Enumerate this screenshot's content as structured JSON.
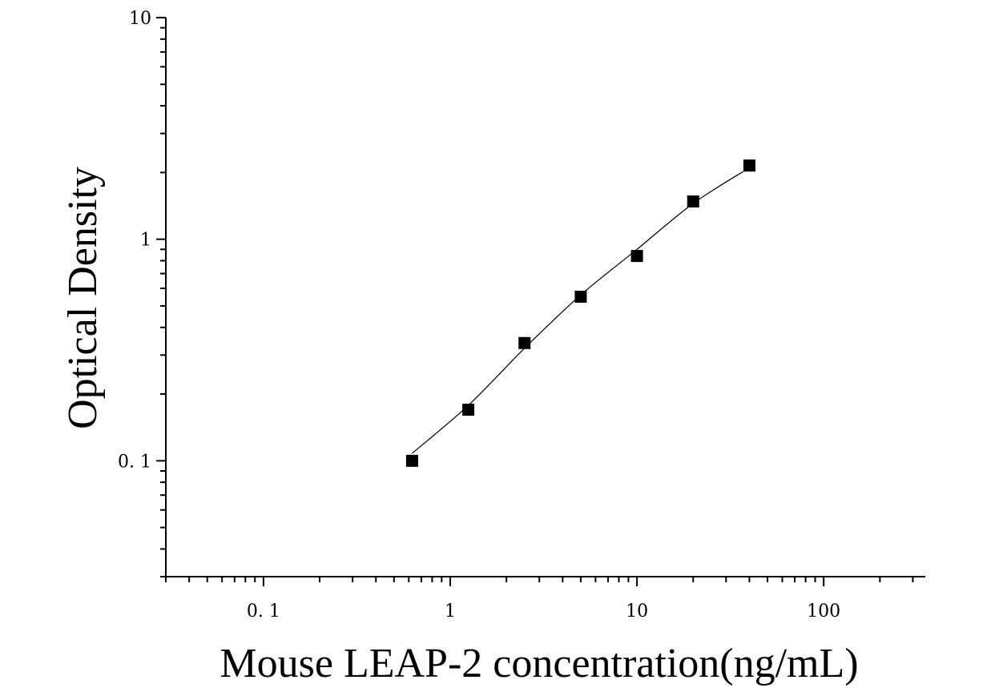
{
  "chart_data": {
    "type": "scatter",
    "title": "",
    "xlabel": "Mouse LEAP-2 concentration(ng/mL)",
    "ylabel": "Optical Density",
    "x_scale": "log",
    "y_scale": "log",
    "xlim": [
      0.03,
      350
    ],
    "ylim": [
      0.03,
      10
    ],
    "x_ticks": [
      {
        "value": 0.1,
        "label": "0. 1"
      },
      {
        "value": 1,
        "label": "1"
      },
      {
        "value": 10,
        "label": "10"
      },
      {
        "value": 100,
        "label": "100"
      }
    ],
    "y_ticks": [
      {
        "value": 0.1,
        "label": "0. 1"
      },
      {
        "value": 1,
        "label": "1"
      },
      {
        "value": 10,
        "label": "10"
      }
    ],
    "grid": false,
    "legend": "none",
    "series": [
      {
        "marker": "square",
        "color": "#000000",
        "points": [
          {
            "x": 0.625,
            "y": 0.1
          },
          {
            "x": 1.25,
            "y": 0.17
          },
          {
            "x": 2.5,
            "y": 0.34
          },
          {
            "x": 5,
            "y": 0.55
          },
          {
            "x": 10,
            "y": 0.84
          },
          {
            "x": 20,
            "y": 1.48
          },
          {
            "x": 40,
            "y": 2.15
          }
        ]
      }
    ],
    "fit_curve": {
      "color": "#000000",
      "points": [
        {
          "x": 0.625,
          "y": 0.108
        },
        {
          "x": 1.25,
          "y": 0.178
        },
        {
          "x": 2.5,
          "y": 0.322
        },
        {
          "x": 5,
          "y": 0.56
        },
        {
          "x": 10,
          "y": 0.9
        },
        {
          "x": 20,
          "y": 1.45
        },
        {
          "x": 40,
          "y": 2.1
        }
      ]
    }
  }
}
